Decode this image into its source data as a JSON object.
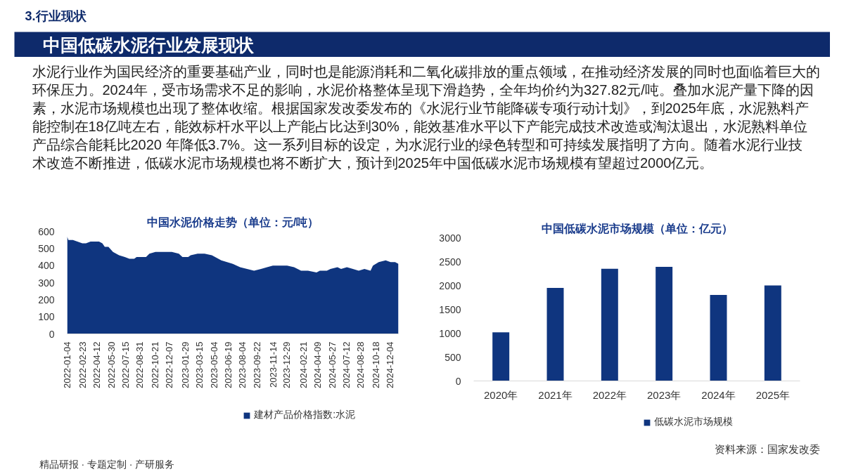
{
  "chart_data": [
    {
      "type": "other",
      "title": "中国低碳水泥行业发展现状",
      "annotations": [
        "3.行业现状",
        "水泥行业作为国民经济的重要基础产业，同时也是能源消耗和二氧化碳排放的重点领域，在推动经济发展的同时也面临着巨大的环保压力。2024年，受市场需求不足的影响，水泥价格整体呈现下滑趋势，全年均价约为327.82元/吨。叠加水泥产量下降的因素，水泥市场规模也出现了整体收缩。根据国家发改委发布的《水泥行业节能降碳专项行动计划》，到2025年底，水泥熟料产能控制在18亿吨左右，能效标杆水平以上产能占比达到30%，能效基准水平以下产能完成技术改造或淘汰退出，水泥熟料单位产品综合能耗比2020 年降低3.7%。这一系列目标的设定，为水泥行业的绿色转型和可持续发展指明了方向。随着水泥行业技术改造不断推进，低碳水泥市场规模也将不断扩大，预计到2025年中国低碳水泥市场规模有望超过2000亿元。",
        "精品研报 · 专题定制 · 产研服务",
        "资料来源：国家发改委"
      ]
    },
    {
      "type": "area",
      "title": "中国水泥价格走势（单位：元/吨）",
      "x": [
        "2022-01-04",
        "2022-01-08",
        "2022-01-23",
        "2022-02-23",
        "2022-03-07",
        "2022-03-22",
        "2022-04-19",
        "2022-04-30",
        "2022-05-08",
        "2022-05-20",
        "2022-06-04",
        "2022-06-24",
        "2022-07-13",
        "2022-07-28",
        "2022-08-13",
        "2022-08-21",
        "2022-09-21",
        "2022-10-02",
        "2022-10-22",
        "2022-11-22",
        "2022-12-15",
        "2023-01-07",
        "2023-01-19",
        "2023-02-07",
        "2023-02-15",
        "2023-03-10",
        "2023-04-02",
        "2023-04-26",
        "2023-05-27",
        "2023-07-04",
        "2023-07-28",
        "2023-08-20",
        "2023-09-12",
        "2023-10-05",
        "2023-10-25",
        "2023-11-13",
        "2023-12-06",
        "2023-12-30",
        "2024-01-22",
        "2024-02-14",
        "2024-03-08",
        "2024-04-05",
        "2024-04-16",
        "2024-05-09",
        "2024-05-21",
        "2024-06-13",
        "2024-06-25",
        "2024-07-14",
        "2024-08-03",
        "2024-08-22",
        "2024-09-10",
        "2024-09-30",
        "2024-10-08",
        "2024-10-27",
        "2024-11-19",
        "2024-12-05",
        "2024-12-20",
        "2024-12-31"
      ],
      "series": [
        {
          "name": "建材产品价格指数:水泥",
          "color": "#0f357f",
          "values": [
            570,
            550,
            550,
            530,
            530,
            540,
            540,
            530,
            510,
            510,
            480,
            460,
            450,
            440,
            440,
            450,
            450,
            470,
            480,
            480,
            480,
            470,
            450,
            450,
            460,
            470,
            470,
            460,
            430,
            410,
            390,
            380,
            370,
            380,
            390,
            400,
            400,
            400,
            390,
            370,
            370,
            360,
            370,
            370,
            380,
            390,
            380,
            390,
            380,
            370,
            380,
            370,
            400,
            420,
            430,
            420,
            420,
            410
          ]
        }
      ],
      "xlim": [
        "2022-01-04",
        "2024-12-31"
      ],
      "xticks": [
        "2022-01-04",
        "2022-02-23",
        "2022-04-12",
        "2022-05-30",
        "2022-07-15",
        "2022-08-31",
        "2022-10-21",
        "2022-12-07",
        "2023-01-29",
        "2023-03-15",
        "2023-05-04",
        "2023-06-19",
        "2023-08-04",
        "2023-09-22",
        "2023-11-14",
        "2023-12-29",
        "2024-02-21",
        "2024-04-09",
        "2024-05-27",
        "2024-07-12",
        "2024-08-28",
        "2024-10-18",
        "2024-12-04"
      ],
      "ylim": [
        0,
        600
      ],
      "yticks": [
        0,
        100,
        200,
        300,
        400,
        500,
        600
      ],
      "legend": "bottom"
    },
    {
      "type": "bar",
      "title": "中国低碳水泥市场规模（单位：亿元）",
      "categories": [
        "2020年",
        "2021年",
        "2022年",
        "2023年",
        "2024年",
        "2025年"
      ],
      "series": [
        {
          "name": "低碳水泥市场规模",
          "color": "#0f357f",
          "values": [
            1020,
            1950,
            2350,
            2390,
            1800,
            2000
          ]
        }
      ],
      "ylim": [
        0,
        3000
      ],
      "yticks": [
        0,
        500,
        1000,
        1500,
        2000,
        2500,
        3000
      ],
      "legend": "bottom"
    }
  ]
}
